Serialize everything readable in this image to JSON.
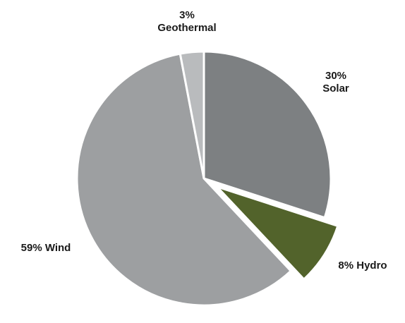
{
  "chart_data": {
    "type": "pie",
    "title": "",
    "slices": [
      {
        "category": "Solar",
        "value": 30,
        "label_lines": [
          "30%",
          "Solar"
        ],
        "color": "#7d8082",
        "exploded": false
      },
      {
        "category": "Hydro",
        "value": 8,
        "label_lines": [
          "8% Hydro"
        ],
        "color": "#52632b",
        "exploded": true
      },
      {
        "category": "Wind",
        "value": 59,
        "label_lines": [
          "59% Wind"
        ],
        "color": "#9d9fa1",
        "exploded": false
      },
      {
        "category": "Geothermal",
        "value": 3,
        "label_lines": [
          "3%",
          "Geothermal"
        ],
        "color": "#b9bbbd",
        "exploded": false
      }
    ],
    "start_angle": "12 o'clock",
    "direction": "clockwise",
    "legend": "none",
    "slice_border_color": "#ffffff"
  }
}
